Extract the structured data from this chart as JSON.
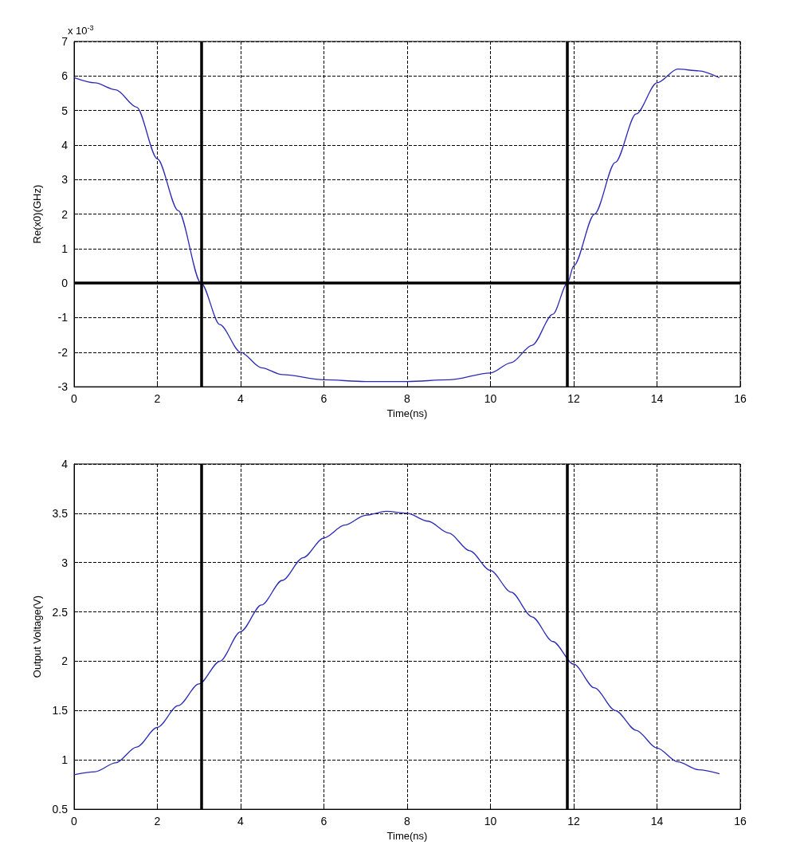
{
  "chart_data": [
    {
      "type": "line",
      "ylabel": "Re(x0)(GHz)",
      "xlabel": "Time(ns)",
      "annotations": [
        "x 10$^{-3}$"
      ],
      "x": [
        0,
        0.5,
        1,
        1.5,
        2,
        2.5,
        3.05,
        3.5,
        4,
        4.5,
        5,
        6,
        7,
        8,
        9,
        10,
        10.5,
        11,
        11.5,
        11.85,
        12,
        12.5,
        13,
        13.5,
        14,
        14.5,
        15,
        15.5
      ],
      "series": [
        {
          "color": "#2b2bb8",
          "values": [
            5.95,
            5.8,
            5.6,
            5.1,
            3.6,
            2.1,
            0,
            -1.2,
            -2.0,
            -2.45,
            -2.65,
            -2.8,
            -2.85,
            -2.85,
            -2.8,
            -2.6,
            -2.3,
            -1.8,
            -0.9,
            0,
            0.5,
            2.0,
            3.5,
            4.9,
            5.8,
            6.2,
            6.15,
            5.95
          ]
        }
      ],
      "xlim": [
        0,
        16
      ],
      "xticks": [
        0,
        2,
        4,
        6,
        8,
        10,
        12,
        14,
        16
      ],
      "ylim": [
        -3,
        7
      ],
      "yticks": [
        -3,
        -2,
        -1,
        0,
        1,
        2,
        3,
        4,
        5,
        6,
        7
      ],
      "grid": true,
      "marker": "none",
      "line_style": "solid",
      "ref_lines": [
        {
          "axis": "x",
          "value": 3.05,
          "color": "#000000"
        },
        {
          "axis": "x",
          "value": 11.85,
          "color": "#000000"
        },
        {
          "axis": "y",
          "value": 0,
          "color": "#000000"
        }
      ]
    },
    {
      "type": "line",
      "ylabel": "Output Voltage(V)",
      "xlabel": "Time(ns)",
      "x": [
        0,
        0.5,
        1,
        1.5,
        2,
        2.5,
        3,
        3.5,
        4,
        4.5,
        5,
        5.5,
        6,
        6.5,
        7,
        7.5,
        8,
        8.5,
        9,
        9.5,
        10,
        10.5,
        11,
        11.5,
        12,
        12.5,
        13,
        13.5,
        14,
        14.5,
        15,
        15.5
      ],
      "series": [
        {
          "color": "#2b2bb8",
          "values": [
            0.85,
            0.88,
            0.97,
            1.13,
            1.33,
            1.55,
            1.77,
            2.0,
            2.3,
            2.57,
            2.82,
            3.05,
            3.25,
            3.38,
            3.48,
            3.52,
            3.5,
            3.42,
            3.3,
            3.12,
            2.92,
            2.7,
            2.45,
            2.2,
            1.97,
            1.73,
            1.5,
            1.3,
            1.12,
            0.98,
            0.9,
            0.86
          ]
        }
      ],
      "xlim": [
        0,
        16
      ],
      "xticks": [
        0,
        2,
        4,
        6,
        8,
        10,
        12,
        14,
        16
      ],
      "ylim": [
        0.5,
        4
      ],
      "yticks": [
        0.5,
        1,
        1.5,
        2,
        2.5,
        3,
        3.5,
        4
      ],
      "grid": true,
      "marker": "none",
      "line_style": "solid",
      "ref_lines": [
        {
          "axis": "x",
          "value": 3.05,
          "color": "#000000"
        },
        {
          "axis": "x",
          "value": 11.85,
          "color": "#000000"
        }
      ]
    }
  ]
}
